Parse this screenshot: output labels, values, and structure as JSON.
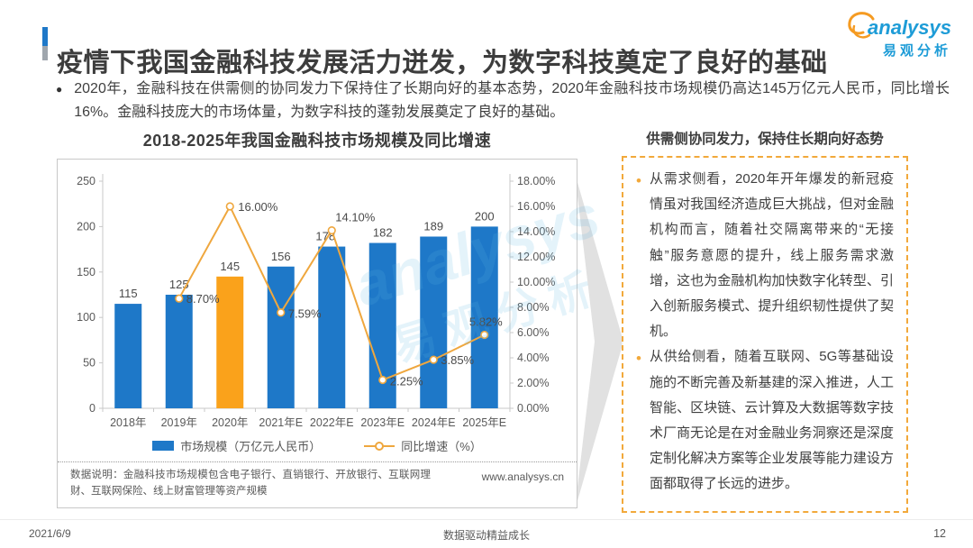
{
  "header": {
    "title": "疫情下我国金融科技发展活力迸发，为数字科技奠定了良好的基础",
    "logo": {
      "brand": "analysys",
      "brand_cn": "易观分析"
    }
  },
  "intro": {
    "bullet": "●",
    "text": "2020年，金融科技在供需侧的协同发力下保持住了长期向好的基本态势，2020年金融科技市场规模仍高达145万亿元人民币，同比增长16%。金融科技庞大的市场体量，为数字科技的蓬勃发展奠定了良好的基础。"
  },
  "chart": {
    "title": "2018-2025年我国金融科技市场规模及同比增速",
    "legend": [
      {
        "label": "市场规模（万亿元人民币）"
      },
      {
        "label": "同比增速（%）"
      }
    ],
    "footnote": "数据说明：金融科技市场规模包含电子银行、直销银行、开放银行、互联网理财、互联网保险、线上财富管理等资产规模",
    "source_url": "www.analysys.cn"
  },
  "chart_data": {
    "type": "bar",
    "title": "2018-2025年我国金融科技市场规模及同比增速",
    "categories": [
      "2018年",
      "2019年",
      "2020年",
      "2021年E",
      "2022年E",
      "2023年E",
      "2024年E",
      "2025年E"
    ],
    "series": [
      {
        "name": "市场规模（万亿元人民币）",
        "type": "bar",
        "values": [
          115,
          125,
          145,
          156,
          178,
          182,
          189,
          200
        ],
        "color": "#1E78C8",
        "highlight_index": 2,
        "highlight_color": "#FAA21B"
      },
      {
        "name": "同比增速（%）",
        "type": "line",
        "values": [
          null,
          8.7,
          16.0,
          7.59,
          14.1,
          2.25,
          3.85,
          5.82
        ],
        "color": "#EFA73E",
        "axis": "right"
      }
    ],
    "left_axis": {
      "min": 0,
      "max": 250,
      "step": 50
    },
    "right_axis": {
      "min": 0,
      "max": 18,
      "step": 2,
      "format": "percent2"
    },
    "grid": false,
    "legend_position": "bottom"
  },
  "insight": {
    "title": "供需侧协同发力，保持住长期向好态势",
    "bullets": [
      "从需求侧看，2020年开年爆发的新冠疫情虽对我国经济造成巨大挑战，但对金融机构而言，随着社交隔离带来的“无接触”服务意愿的提升，线上服务需求激增，这也为金融机构加快数字化转型、引入创新服务模式、提升组织韧性提供了契机。",
      "从供给侧看，随着互联网、5G等基础设施的不断完善及新基建的深入推进，人工智能、区块链、云计算及大数据等数字技术厂商无论是在对金融业务洞察还是深度定制化解决方案等企业发展等能力建设方面都取得了长远的进步。"
    ]
  },
  "watermark": {
    "latin": "analysys",
    "cn": "易观分析"
  },
  "footer": {
    "date": "2021/6/9",
    "slogan": "数据驱动精益成长",
    "page": "12"
  },
  "colors": {
    "bar_blue": "#1E78C8",
    "bar_highlight": "#FAA21B",
    "line_orange": "#EFA73E",
    "accent_blue": "#1E78C8",
    "panel_border_orange": "#F2A93B",
    "logo_blue": "#1E9CD7",
    "logo_orange": "#F59B22",
    "axis_gray": "#C8C8C8",
    "text_gray": "#595959"
  }
}
